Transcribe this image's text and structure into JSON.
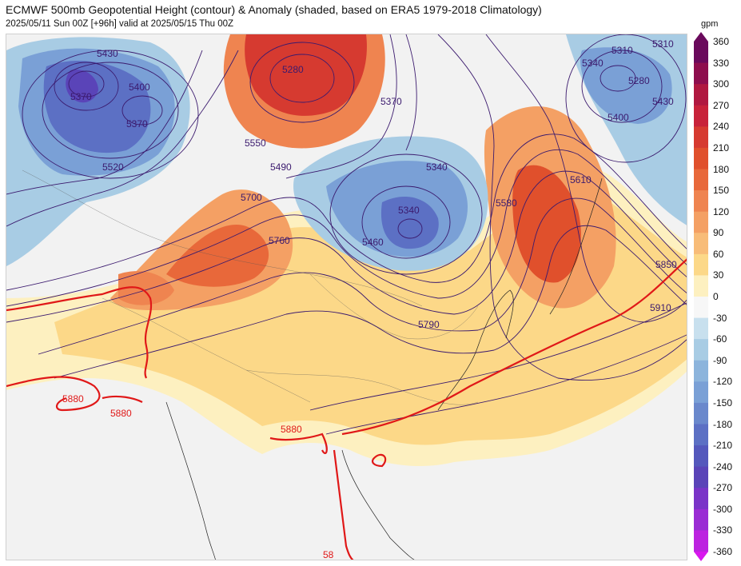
{
  "header": {
    "title": "ECMWF 500mb Geopotential Height (contour) & Anomaly (shaded, based on ERA5 1979-2018 Climatology)",
    "subtitle": "2025/05/11 Sun 00Z [+96h] valid at 2025/05/15 Thu 00Z"
  },
  "map": {
    "contour_labels": [
      "5430",
      "5370",
      "5400",
      "5370",
      "5520",
      "5280",
      "5550",
      "5490",
      "5370",
      "5700",
      "5760",
      "5340",
      "5340",
      "5460",
      "5790",
      "5580",
      "5610",
      "5340",
      "5310",
      "5280",
      "5400",
      "5430",
      "5310",
      "5850",
      "5910"
    ],
    "ridge_labels": [
      "5880",
      "5880",
      "5880",
      "58"
    ],
    "ridge_color": "#e01818",
    "contour_color": "#3b1a6e",
    "land_color": "#f2f2f2",
    "coast_color": "#333333"
  },
  "colorbar": {
    "units": "gpm",
    "ticks": [
      "360",
      "330",
      "300",
      "270",
      "240",
      "210",
      "180",
      "150",
      "120",
      "90",
      "60",
      "30",
      "0",
      "-30",
      "-60",
      "-90",
      "-120",
      "-150",
      "-180",
      "-210",
      "-240",
      "-270",
      "-300",
      "-330",
      "-360"
    ],
    "colors": {
      "360": "#6a0a5c",
      "330": "#8e0e4e",
      "300": "#b01840",
      "270": "#c8223a",
      "240": "#d63a30",
      "210": "#e0502c",
      "180": "#e8683a",
      "150": "#ef8450",
      "120": "#f4a064",
      "90": "#f8bc78",
      "60": "#fcd888",
      "30": "#fdf0c0",
      "0": "#f7f7f7",
      "-30": "#c8e0ee",
      "-60": "#a8cce4",
      "-90": "#8cb4dc",
      "-120": "#7aa0d6",
      "-150": "#6a88cc",
      "-180": "#5c70c4",
      "-210": "#5458bc",
      "-240": "#5a44b8",
      "-270": "#7a34c8",
      "-300": "#9a2cd4",
      "-330": "#bc22e0",
      "-360": "#d818ee"
    }
  }
}
